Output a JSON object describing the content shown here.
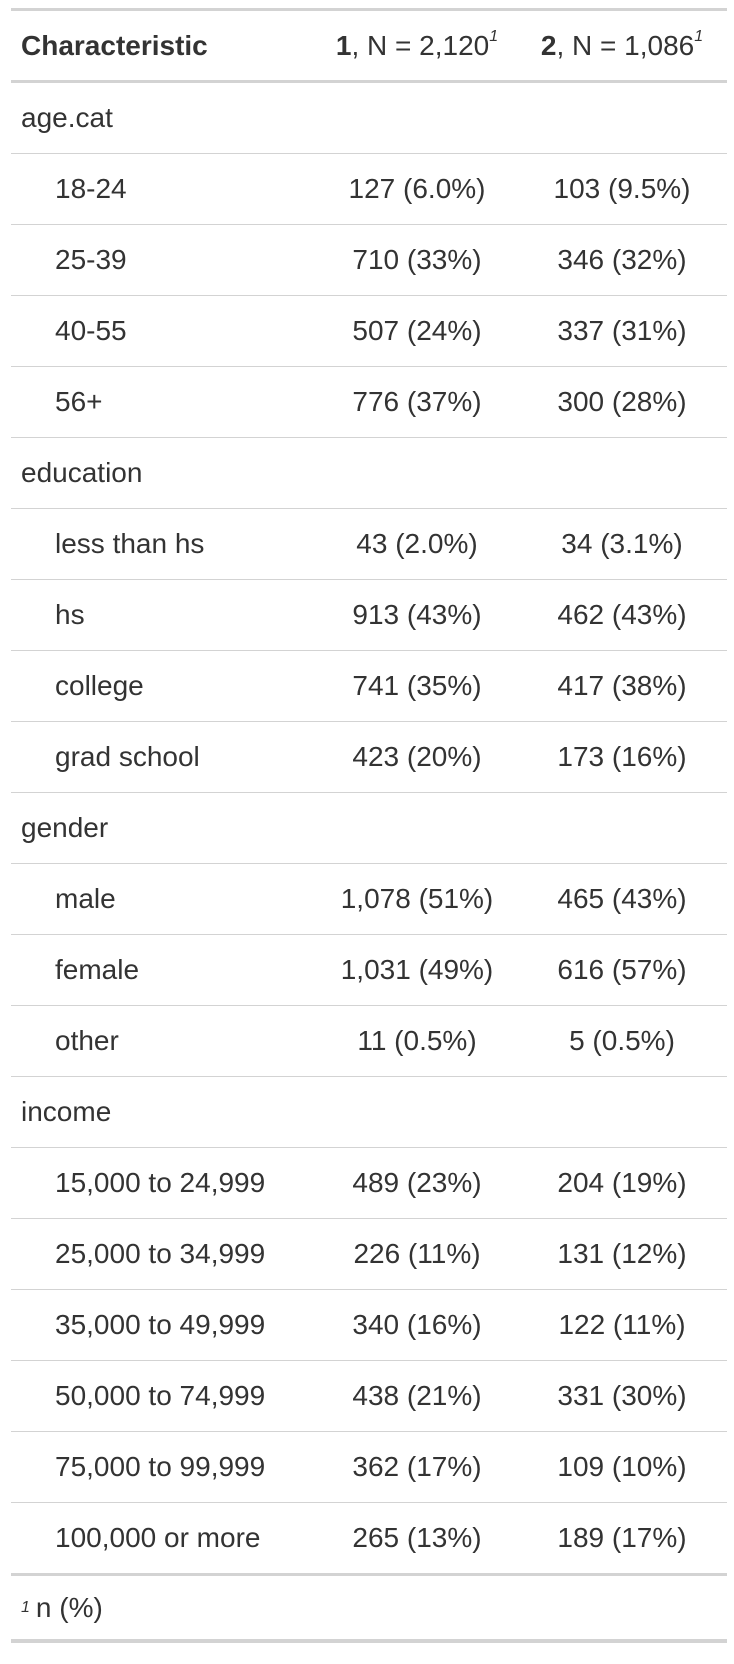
{
  "header": {
    "characteristic": "Characteristic",
    "col1_level": "1",
    "col1_rest": ", N = 2,120",
    "col2_level": "2",
    "col2_rest": ", N = 1,086",
    "footnote_mark": "1"
  },
  "rows": [
    {
      "type": "group",
      "label": "age.cat",
      "c1": "",
      "c2": ""
    },
    {
      "type": "level",
      "label": "18-24",
      "c1": "127 (6.0%)",
      "c2": "103 (9.5%)"
    },
    {
      "type": "level",
      "label": "25-39",
      "c1": "710 (33%)",
      "c2": "346 (32%)"
    },
    {
      "type": "level",
      "label": "40-55",
      "c1": "507 (24%)",
      "c2": "337 (31%)"
    },
    {
      "type": "level",
      "label": "56+",
      "c1": "776 (37%)",
      "c2": "300 (28%)"
    },
    {
      "type": "group",
      "label": "education",
      "c1": "",
      "c2": ""
    },
    {
      "type": "level",
      "label": "less than hs",
      "c1": "43 (2.0%)",
      "c2": "34 (3.1%)"
    },
    {
      "type": "level",
      "label": "hs",
      "c1": "913 (43%)",
      "c2": "462 (43%)"
    },
    {
      "type": "level",
      "label": "college",
      "c1": "741 (35%)",
      "c2": "417 (38%)"
    },
    {
      "type": "level",
      "label": "grad school",
      "c1": "423 (20%)",
      "c2": "173 (16%)"
    },
    {
      "type": "group",
      "label": "gender",
      "c1": "",
      "c2": ""
    },
    {
      "type": "level",
      "label": "male",
      "c1": "1,078 (51%)",
      "c2": "465 (43%)"
    },
    {
      "type": "level",
      "label": "female",
      "c1": "1,031 (49%)",
      "c2": "616 (57%)"
    },
    {
      "type": "level",
      "label": "other",
      "c1": "11 (0.5%)",
      "c2": "5 (0.5%)"
    },
    {
      "type": "group",
      "label": "income",
      "c1": "",
      "c2": ""
    },
    {
      "type": "level",
      "label": "15,000 to 24,999",
      "c1": "489 (23%)",
      "c2": "204 (19%)"
    },
    {
      "type": "level",
      "label": "25,000 to 34,999",
      "c1": "226 (11%)",
      "c2": "131 (12%)"
    },
    {
      "type": "level",
      "label": "35,000 to 49,999",
      "c1": "340 (16%)",
      "c2": "122 (11%)"
    },
    {
      "type": "level",
      "label": "50,000 to 74,999",
      "c1": "438 (21%)",
      "c2": "331 (30%)"
    },
    {
      "type": "level",
      "label": "75,000 to 99,999",
      "c1": "362 (17%)",
      "c2": "109 (10%)"
    },
    {
      "type": "level",
      "label": "100,000 or more",
      "c1": "265 (13%)",
      "c2": "189 (17%)"
    }
  ],
  "footer": {
    "mark": "1",
    "text": "n (%)"
  }
}
